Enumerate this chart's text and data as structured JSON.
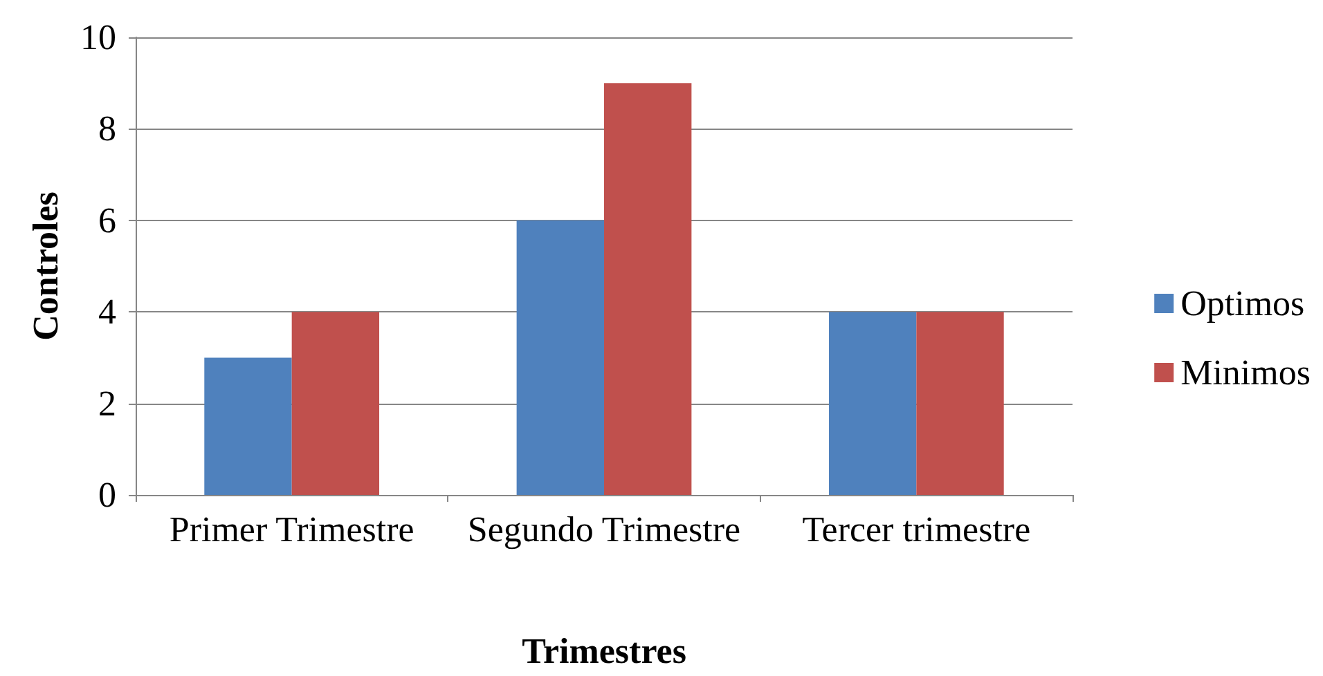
{
  "chart_data": {
    "type": "bar",
    "xlabel": "Trimestres",
    "ylabel": "Controles",
    "categories": [
      "Primer Trimestre",
      "Segundo Trimestre",
      "Tercer trimestre"
    ],
    "series": [
      {
        "name": "Optimos",
        "color": "#4f81bd",
        "values": [
          3,
          6,
          4
        ]
      },
      {
        "name": "Minimos",
        "color": "#c0504d",
        "values": [
          4,
          9,
          4
        ]
      }
    ],
    "ylim": [
      0,
      10
    ],
    "yticks": [
      0,
      2,
      4,
      6,
      8,
      10
    ],
    "grid": "y",
    "legend": "right"
  }
}
